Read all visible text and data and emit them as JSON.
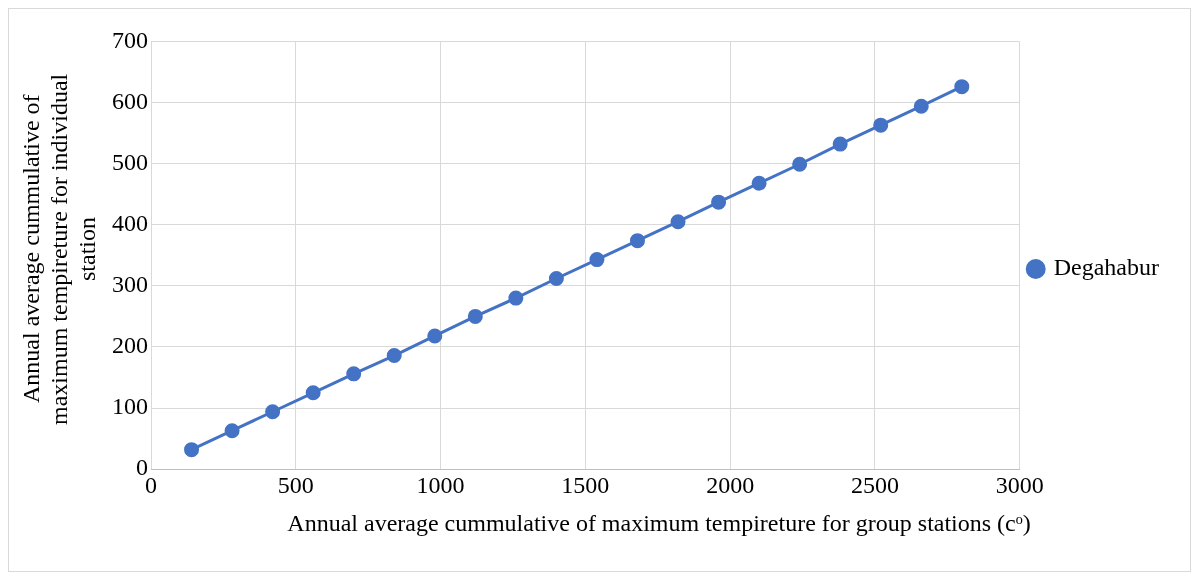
{
  "chart_data": {
    "type": "line",
    "xlabel": "Annual average cummulative of maximum tempireture for group stations (cᵒ)",
    "ylabel": "Annual average cummulative of maximum tempireture for individual station",
    "x": [
      140,
      280,
      420,
      560,
      700,
      840,
      980,
      1120,
      1260,
      1400,
      1540,
      1680,
      1820,
      1960,
      2100,
      2240,
      2380,
      2520,
      2660,
      2800
    ],
    "series": [
      {
        "name": "Degahabur",
        "color": "#4472c4",
        "values": [
          32,
          63,
          94,
          125,
          156,
          186,
          218,
          250,
          280,
          312,
          343,
          374,
          405,
          437,
          468,
          499,
          532,
          563,
          594,
          626
        ]
      }
    ],
    "xlim": [
      0,
      3000
    ],
    "xticks": [
      0,
      500,
      1000,
      1500,
      2000,
      2500,
      3000
    ],
    "ylim": [
      0,
      700
    ],
    "yticks": [
      0,
      100,
      200,
      300,
      400,
      500,
      600,
      700
    ],
    "grid": true,
    "legend": "right",
    "marker": "circle",
    "line_style": "solid"
  }
}
